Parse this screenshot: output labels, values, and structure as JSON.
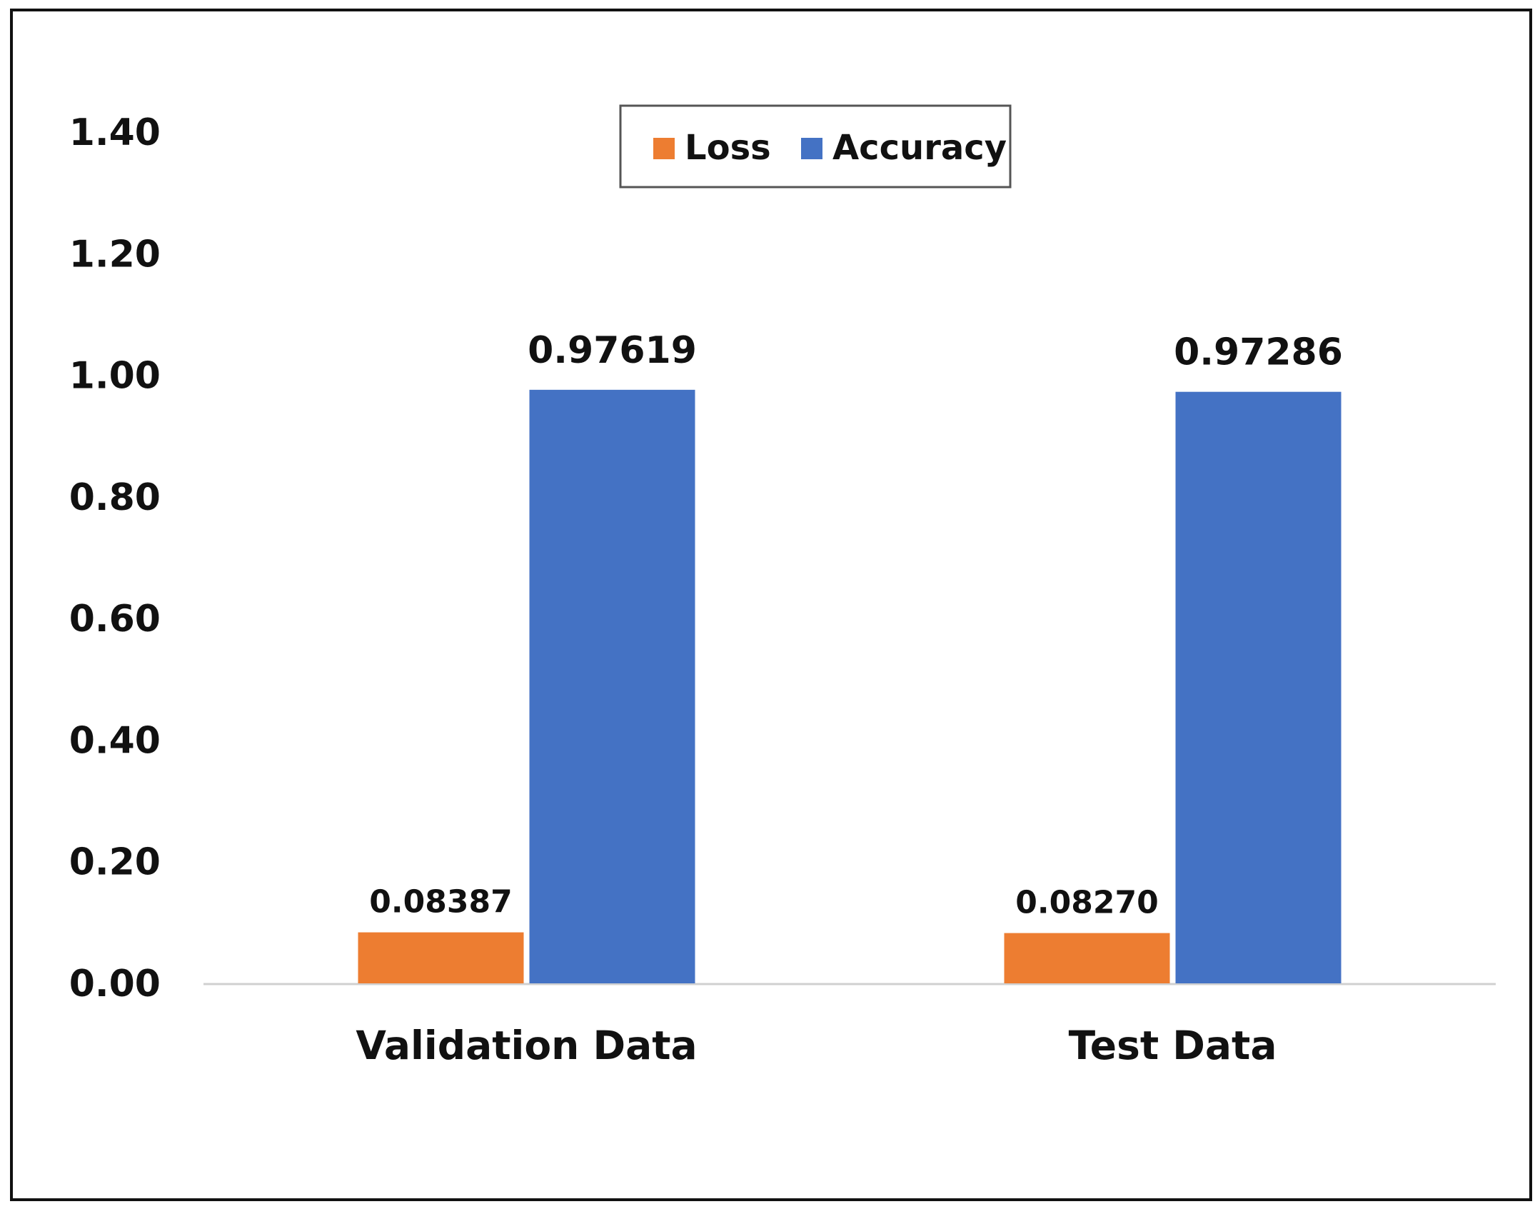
{
  "chart_data": {
    "type": "bar",
    "categories": [
      "Validation Data",
      "Test Data"
    ],
    "series": [
      {
        "name": "Loss",
        "values": [
          0.08387,
          0.0827
        ],
        "color": "#ED7D31",
        "labels": [
          "0.08387",
          "0.08270"
        ]
      },
      {
        "name": "Accuracy",
        "values": [
          0.97619,
          0.97286
        ],
        "color": "#4472C4",
        "labels": [
          "0.97619",
          "0.97286"
        ]
      }
    ],
    "ylim": [
      0,
      1.4
    ],
    "yticks": [
      "0.00",
      "0.20",
      "0.40",
      "0.60",
      "0.80",
      "1.00",
      "1.20",
      "1.40"
    ],
    "ytick_values": [
      0,
      0.2,
      0.4,
      0.6,
      0.8,
      1.0,
      1.2,
      1.4
    ],
    "grid": false,
    "legend_position": "top-center",
    "title": "",
    "xlabel": "",
    "ylabel": ""
  }
}
